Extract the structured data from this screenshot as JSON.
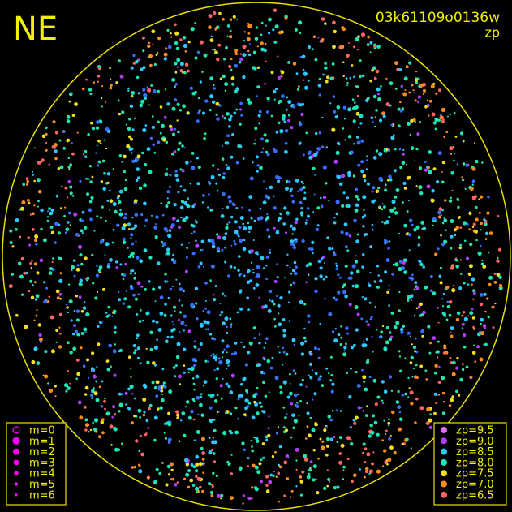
{
  "direction_label": "NE",
  "frame_id": "03k61109o0136w",
  "mode": "zp",
  "magnitude_legend": [
    "m=0",
    "m=1",
    "m=2",
    "m=3",
    "m=4",
    "m=5",
    "m=6"
  ],
  "zp_legend": [
    {
      "label": "zp=9.5",
      "color": "#e46cff"
    },
    {
      "label": "zp=9.0",
      "color": "#b23cff"
    },
    {
      "label": "zp=8.5",
      "color": "#2ec8ff"
    },
    {
      "label": "zp=8.0",
      "color": "#1ee6b4"
    },
    {
      "label": "zp=7.5",
      "color": "#f0e020"
    },
    {
      "label": "zp=7.0",
      "color": "#ff8c1e"
    },
    {
      "label": "zp=6.5",
      "color": "#ff6464"
    }
  ]
}
